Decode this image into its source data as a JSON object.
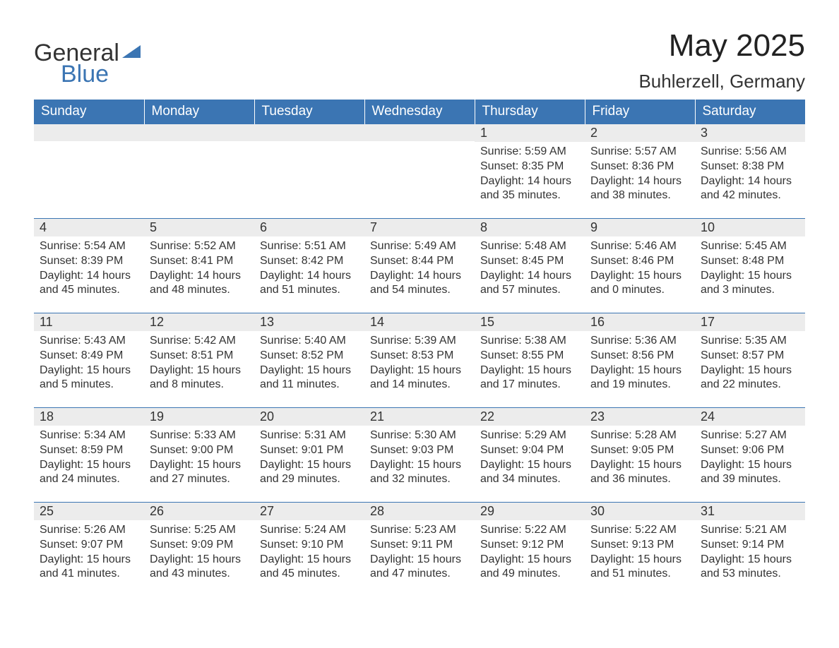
{
  "logo": {
    "word1": "General",
    "word2": "Blue"
  },
  "title": "May 2025",
  "location": "Buhlerzell, Germany",
  "colors": {
    "header_bg": "#3b75b3",
    "header_text": "#ffffff",
    "daynum_bg": "#ececec",
    "row_border": "#3b75b3",
    "body_text": "#333333",
    "page_bg": "#ffffff"
  },
  "typography": {
    "title_fontsize": 44,
    "location_fontsize": 26,
    "weekday_fontsize": 19,
    "daynum_fontsize": 18,
    "body_fontsize": 16
  },
  "weekdays": [
    "Sunday",
    "Monday",
    "Tuesday",
    "Wednesday",
    "Thursday",
    "Friday",
    "Saturday"
  ],
  "leading_blanks": 4,
  "days": [
    {
      "n": 1,
      "sunrise": "5:59 AM",
      "sunset": "8:35 PM",
      "dl_h": 14,
      "dl_m": 35
    },
    {
      "n": 2,
      "sunrise": "5:57 AM",
      "sunset": "8:36 PM",
      "dl_h": 14,
      "dl_m": 38
    },
    {
      "n": 3,
      "sunrise": "5:56 AM",
      "sunset": "8:38 PM",
      "dl_h": 14,
      "dl_m": 42
    },
    {
      "n": 4,
      "sunrise": "5:54 AM",
      "sunset": "8:39 PM",
      "dl_h": 14,
      "dl_m": 45
    },
    {
      "n": 5,
      "sunrise": "5:52 AM",
      "sunset": "8:41 PM",
      "dl_h": 14,
      "dl_m": 48
    },
    {
      "n": 6,
      "sunrise": "5:51 AM",
      "sunset": "8:42 PM",
      "dl_h": 14,
      "dl_m": 51
    },
    {
      "n": 7,
      "sunrise": "5:49 AM",
      "sunset": "8:44 PM",
      "dl_h": 14,
      "dl_m": 54
    },
    {
      "n": 8,
      "sunrise": "5:48 AM",
      "sunset": "8:45 PM",
      "dl_h": 14,
      "dl_m": 57
    },
    {
      "n": 9,
      "sunrise": "5:46 AM",
      "sunset": "8:46 PM",
      "dl_h": 15,
      "dl_m": 0
    },
    {
      "n": 10,
      "sunrise": "5:45 AM",
      "sunset": "8:48 PM",
      "dl_h": 15,
      "dl_m": 3
    },
    {
      "n": 11,
      "sunrise": "5:43 AM",
      "sunset": "8:49 PM",
      "dl_h": 15,
      "dl_m": 5
    },
    {
      "n": 12,
      "sunrise": "5:42 AM",
      "sunset": "8:51 PM",
      "dl_h": 15,
      "dl_m": 8
    },
    {
      "n": 13,
      "sunrise": "5:40 AM",
      "sunset": "8:52 PM",
      "dl_h": 15,
      "dl_m": 11
    },
    {
      "n": 14,
      "sunrise": "5:39 AM",
      "sunset": "8:53 PM",
      "dl_h": 15,
      "dl_m": 14
    },
    {
      "n": 15,
      "sunrise": "5:38 AM",
      "sunset": "8:55 PM",
      "dl_h": 15,
      "dl_m": 17
    },
    {
      "n": 16,
      "sunrise": "5:36 AM",
      "sunset": "8:56 PM",
      "dl_h": 15,
      "dl_m": 19
    },
    {
      "n": 17,
      "sunrise": "5:35 AM",
      "sunset": "8:57 PM",
      "dl_h": 15,
      "dl_m": 22
    },
    {
      "n": 18,
      "sunrise": "5:34 AM",
      "sunset": "8:59 PM",
      "dl_h": 15,
      "dl_m": 24
    },
    {
      "n": 19,
      "sunrise": "5:33 AM",
      "sunset": "9:00 PM",
      "dl_h": 15,
      "dl_m": 27
    },
    {
      "n": 20,
      "sunrise": "5:31 AM",
      "sunset": "9:01 PM",
      "dl_h": 15,
      "dl_m": 29
    },
    {
      "n": 21,
      "sunrise": "5:30 AM",
      "sunset": "9:03 PM",
      "dl_h": 15,
      "dl_m": 32
    },
    {
      "n": 22,
      "sunrise": "5:29 AM",
      "sunset": "9:04 PM",
      "dl_h": 15,
      "dl_m": 34
    },
    {
      "n": 23,
      "sunrise": "5:28 AM",
      "sunset": "9:05 PM",
      "dl_h": 15,
      "dl_m": 36
    },
    {
      "n": 24,
      "sunrise": "5:27 AM",
      "sunset": "9:06 PM",
      "dl_h": 15,
      "dl_m": 39
    },
    {
      "n": 25,
      "sunrise": "5:26 AM",
      "sunset": "9:07 PM",
      "dl_h": 15,
      "dl_m": 41
    },
    {
      "n": 26,
      "sunrise": "5:25 AM",
      "sunset": "9:09 PM",
      "dl_h": 15,
      "dl_m": 43
    },
    {
      "n": 27,
      "sunrise": "5:24 AM",
      "sunset": "9:10 PM",
      "dl_h": 15,
      "dl_m": 45
    },
    {
      "n": 28,
      "sunrise": "5:23 AM",
      "sunset": "9:11 PM",
      "dl_h": 15,
      "dl_m": 47
    },
    {
      "n": 29,
      "sunrise": "5:22 AM",
      "sunset": "9:12 PM",
      "dl_h": 15,
      "dl_m": 49
    },
    {
      "n": 30,
      "sunrise": "5:22 AM",
      "sunset": "9:13 PM",
      "dl_h": 15,
      "dl_m": 51
    },
    {
      "n": 31,
      "sunrise": "5:21 AM",
      "sunset": "9:14 PM",
      "dl_h": 15,
      "dl_m": 53
    }
  ],
  "labels": {
    "sunrise": "Sunrise: ",
    "sunset": "Sunset: ",
    "daylight_prefix": "Daylight: ",
    "hours_word": " hours and ",
    "minutes_word": " minutes."
  }
}
